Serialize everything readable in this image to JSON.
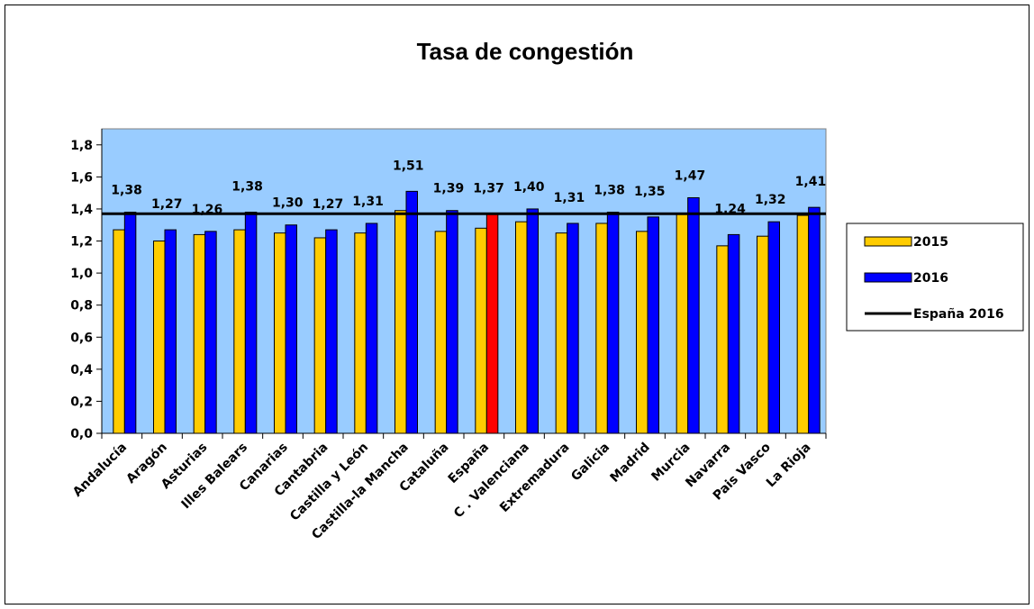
{
  "chart_data": {
    "type": "bar",
    "title": "Tasa de congestión",
    "categories": [
      "Andalucía",
      "Aragón",
      "Asturias",
      "Illes Balears",
      "Canarias",
      "Cantabria",
      "Castilla y León",
      "Castilla-la Mancha",
      "Cataluña",
      "España",
      "C . Valenciana",
      "Extremadura",
      "Galicia",
      "Madrid",
      "Murcia",
      "Navarra",
      "Pais Vasco",
      "La Rioja"
    ],
    "series": [
      {
        "name": "2015",
        "color": "#ffcc00",
        "values": [
          1.27,
          1.2,
          1.24,
          1.27,
          1.25,
          1.22,
          1.25,
          1.39,
          1.26,
          1.28,
          1.32,
          1.25,
          1.31,
          1.26,
          1.37,
          1.17,
          1.23,
          1.36
        ]
      },
      {
        "name": "2016",
        "color": "#0000ff",
        "colors": [
          "#0000ff",
          "#0000ff",
          "#0000ff",
          "#0000ff",
          "#0000ff",
          "#0000ff",
          "#0000ff",
          "#0000ff",
          "#0000ff",
          "#ff0000",
          "#0000ff",
          "#0000ff",
          "#0000ff",
          "#0000ff",
          "#0000ff",
          "#0000ff",
          "#0000ff",
          "#0000ff"
        ],
        "values": [
          1.38,
          1.27,
          1.26,
          1.38,
          1.3,
          1.27,
          1.31,
          1.51,
          1.39,
          1.37,
          1.4,
          1.31,
          1.38,
          1.35,
          1.47,
          1.24,
          1.32,
          1.41
        ],
        "value_labels": [
          "1,38",
          "1,27",
          "1,26",
          "1,38",
          "1,30",
          "1,27",
          "1,31",
          "1,51",
          "1,39",
          "1,37",
          "1,40",
          "1,31",
          "1,38",
          "1,35",
          "1,47",
          "1,24",
          "1,32",
          "1,41"
        ]
      }
    ],
    "reference_lines": [
      {
        "name": "España 2016",
        "value": 1.37,
        "color": "#000000"
      }
    ],
    "ylim": [
      0,
      1.9
    ],
    "yticks": [
      {
        "value": 0,
        "label": "0,0"
      },
      {
        "value": 0.2,
        "label": "0,2"
      },
      {
        "value": 0.4,
        "label": "0,4"
      },
      {
        "value": 0.6,
        "label": "0,6"
      },
      {
        "value": 0.8,
        "label": "0,8"
      },
      {
        "value": 1.0,
        "label": "1,0"
      },
      {
        "value": 1.2,
        "label": "1,2"
      },
      {
        "value": 1.4,
        "label": "1,4"
      },
      {
        "value": 1.6,
        "label": "1,6"
      },
      {
        "value": 1.8,
        "label": "1,8"
      }
    ],
    "plot_background": "#99ccff",
    "legend": "right"
  }
}
